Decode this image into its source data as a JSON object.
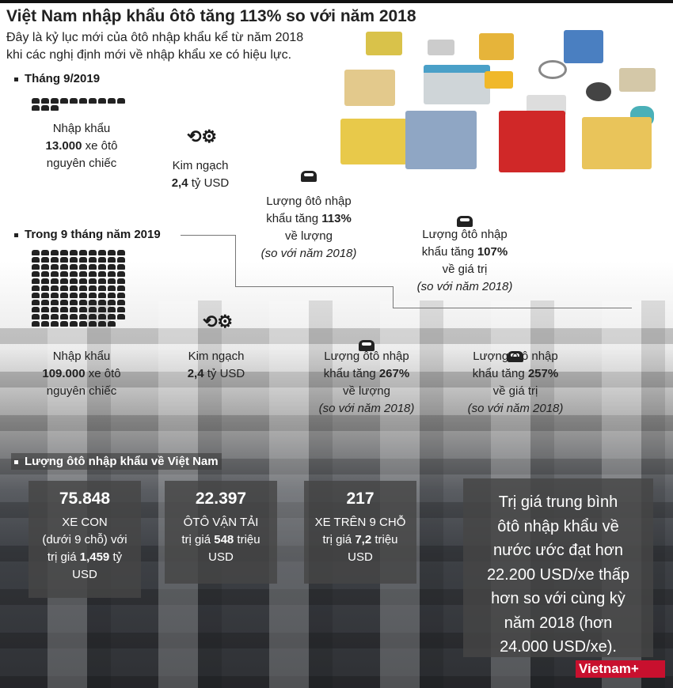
{
  "header": {
    "title": "Việt Nam nhập khẩu ôtô tăng 113% so với năm 2018",
    "subtitle": [
      "Đây là kỷ lục mới của ôtô nhập khẩu kể từ năm 2018",
      "khi các nghị định mới về nhập khẩu xe có hiệu lực."
    ]
  },
  "month": {
    "heading": "Tháng 9/2019",
    "import": {
      "l1": "Nhập khẩu",
      "num": "13.000",
      "l2": " xe ôtô",
      "l3": "nguyên chiếc"
    },
    "value": {
      "l1": "Kim ngạch",
      "num": "2,4",
      "l2": " tỷ USD"
    },
    "volume": {
      "l1": "Lượng ôtô nhập",
      "l2a": "khẩu tăng ",
      "pct": "113%",
      "l3": "về lượng",
      "l4": "(so với năm 2018)"
    },
    "worth": {
      "l1": "Lượng ôtô nhập",
      "l2a": "khẩu tăng ",
      "pct": "107%",
      "l3": "về giá trị",
      "l4": "(so với năm 2018)"
    }
  },
  "ninemonths": {
    "heading": "Trong 9 tháng năm 2019",
    "import": {
      "l1": "Nhập khẩu",
      "num": "109.000",
      "l2": " xe ôtô",
      "l3": "nguyên chiếc"
    },
    "value": {
      "l1": "Kim ngạch",
      "num": "2,4",
      "l2": " tỷ USD"
    },
    "volume": {
      "l1": "Lượng ôtô nhập",
      "l2a": "khẩu tăng ",
      "pct": "267%",
      "l3": "về lượng",
      "l4": "(so với năm 2018)"
    },
    "worth": {
      "l1": "Lượng ôtô nhập",
      "l2a": "khẩu tăng ",
      "pct": "257%",
      "l3": "về giá trị",
      "l4": "(so với năm 2018)"
    }
  },
  "imports": {
    "heading": "Lượng ôtô nhập khẩu về Việt Nam",
    "boxes": [
      {
        "num": "75.848",
        "l1": "XE CON",
        "l2": "(dưới 9 chỗ) với",
        "l3a": "trị giá ",
        "val": "1,459",
        "l3b": " tỷ",
        "l4": "USD"
      },
      {
        "num": "22.397",
        "l1": "ÔTÔ VẬN TẢI",
        "l2": "",
        "l3a": "trị giá ",
        "val": "548",
        "l3b": " triệu",
        "l4": "USD"
      },
      {
        "num": "217",
        "l1": "XE TRÊN 9 CHỖ",
        "l2": "",
        "l3a": "trị giá ",
        "val": "7,2",
        "l3b": " triệu",
        "l4": "USD"
      }
    ],
    "summary": [
      "Trị giá trung bình",
      "ôtô nhập khẩu về",
      "nước ước đạt hơn",
      "22.200 USD/xe thấp",
      "hơn so với cùng kỳ",
      "năm 2018 (hơn",
      "24.000 USD/xe)."
    ]
  },
  "logo": "Vietnam+",
  "colors": {
    "brand": "#c8102e",
    "box": "#464646"
  }
}
